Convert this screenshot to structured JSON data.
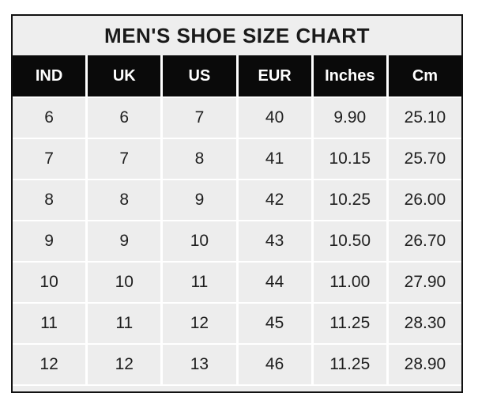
{
  "title": "MEN'S SHOE SIZE CHART",
  "chart_data": {
    "type": "table",
    "title": "MEN'S SHOE SIZE CHART",
    "columns": [
      "IND",
      "UK",
      "US",
      "EUR",
      "Inches",
      "Cm"
    ],
    "rows": [
      [
        "6",
        "6",
        "7",
        "40",
        "9.90",
        "25.10"
      ],
      [
        "7",
        "7",
        "8",
        "41",
        "10.15",
        "25.70"
      ],
      [
        "8",
        "8",
        "9",
        "42",
        "10.25",
        "26.00"
      ],
      [
        "9",
        "9",
        "10",
        "43",
        "10.50",
        "26.70"
      ],
      [
        "10",
        "10",
        "11",
        "44",
        "11.00",
        "27.90"
      ],
      [
        "11",
        "11",
        "12",
        "45",
        "11.25",
        "28.30"
      ],
      [
        "12",
        "12",
        "13",
        "46",
        "11.25",
        "28.90"
      ]
    ]
  },
  "colors": {
    "page_bg": "#ffffff",
    "title_bg": "#eeeeee",
    "header_bg": "#0a0a0a",
    "header_text": "#ffffff",
    "cell_bg": "#ededed",
    "cell_text": "#1f1f1f",
    "border": "#111111",
    "gutter": "#ffffff"
  }
}
